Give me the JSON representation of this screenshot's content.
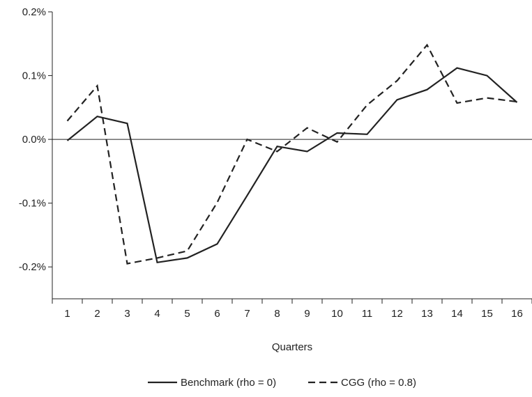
{
  "chart_data": {
    "type": "line",
    "title": "",
    "xlabel": "Quarters",
    "ylabel": "",
    "x": [
      1,
      2,
      3,
      4,
      5,
      6,
      7,
      8,
      9,
      10,
      11,
      12,
      13,
      14,
      15,
      16
    ],
    "categories": [
      "1",
      "2",
      "3",
      "4",
      "5",
      "6",
      "7",
      "8",
      "9",
      "10",
      "11",
      "12",
      "13",
      "14",
      "15",
      "16"
    ],
    "ylim": [
      -0.25,
      0.2
    ],
    "yticks": [
      0.2,
      0.1,
      0.0,
      -0.1,
      -0.2
    ],
    "ytick_labels": [
      "0.2%",
      "0.1%",
      "0.0%",
      "-0.1%",
      "-0.2%"
    ],
    "y_unit": "%",
    "grid": false,
    "zero_line": true,
    "legend_position": "bottom-center",
    "series": [
      {
        "name": "Benchmark (rho = 0)",
        "style": "solid",
        "color": "#222222",
        "values": [
          -0.002,
          0.036,
          0.025,
          -0.193,
          -0.186,
          -0.164,
          -0.088,
          -0.011,
          -0.019,
          0.01,
          0.008,
          0.062,
          0.078,
          0.112,
          0.1,
          0.058
        ]
      },
      {
        "name": "CGG (rho = 0.8)",
        "style": "dashed",
        "color": "#222222",
        "values": [
          0.029,
          0.084,
          -0.195,
          -0.186,
          -0.175,
          -0.099,
          0.0,
          -0.019,
          0.018,
          -0.004,
          0.054,
          0.092,
          0.148,
          0.057,
          0.065,
          0.059
        ]
      }
    ]
  }
}
